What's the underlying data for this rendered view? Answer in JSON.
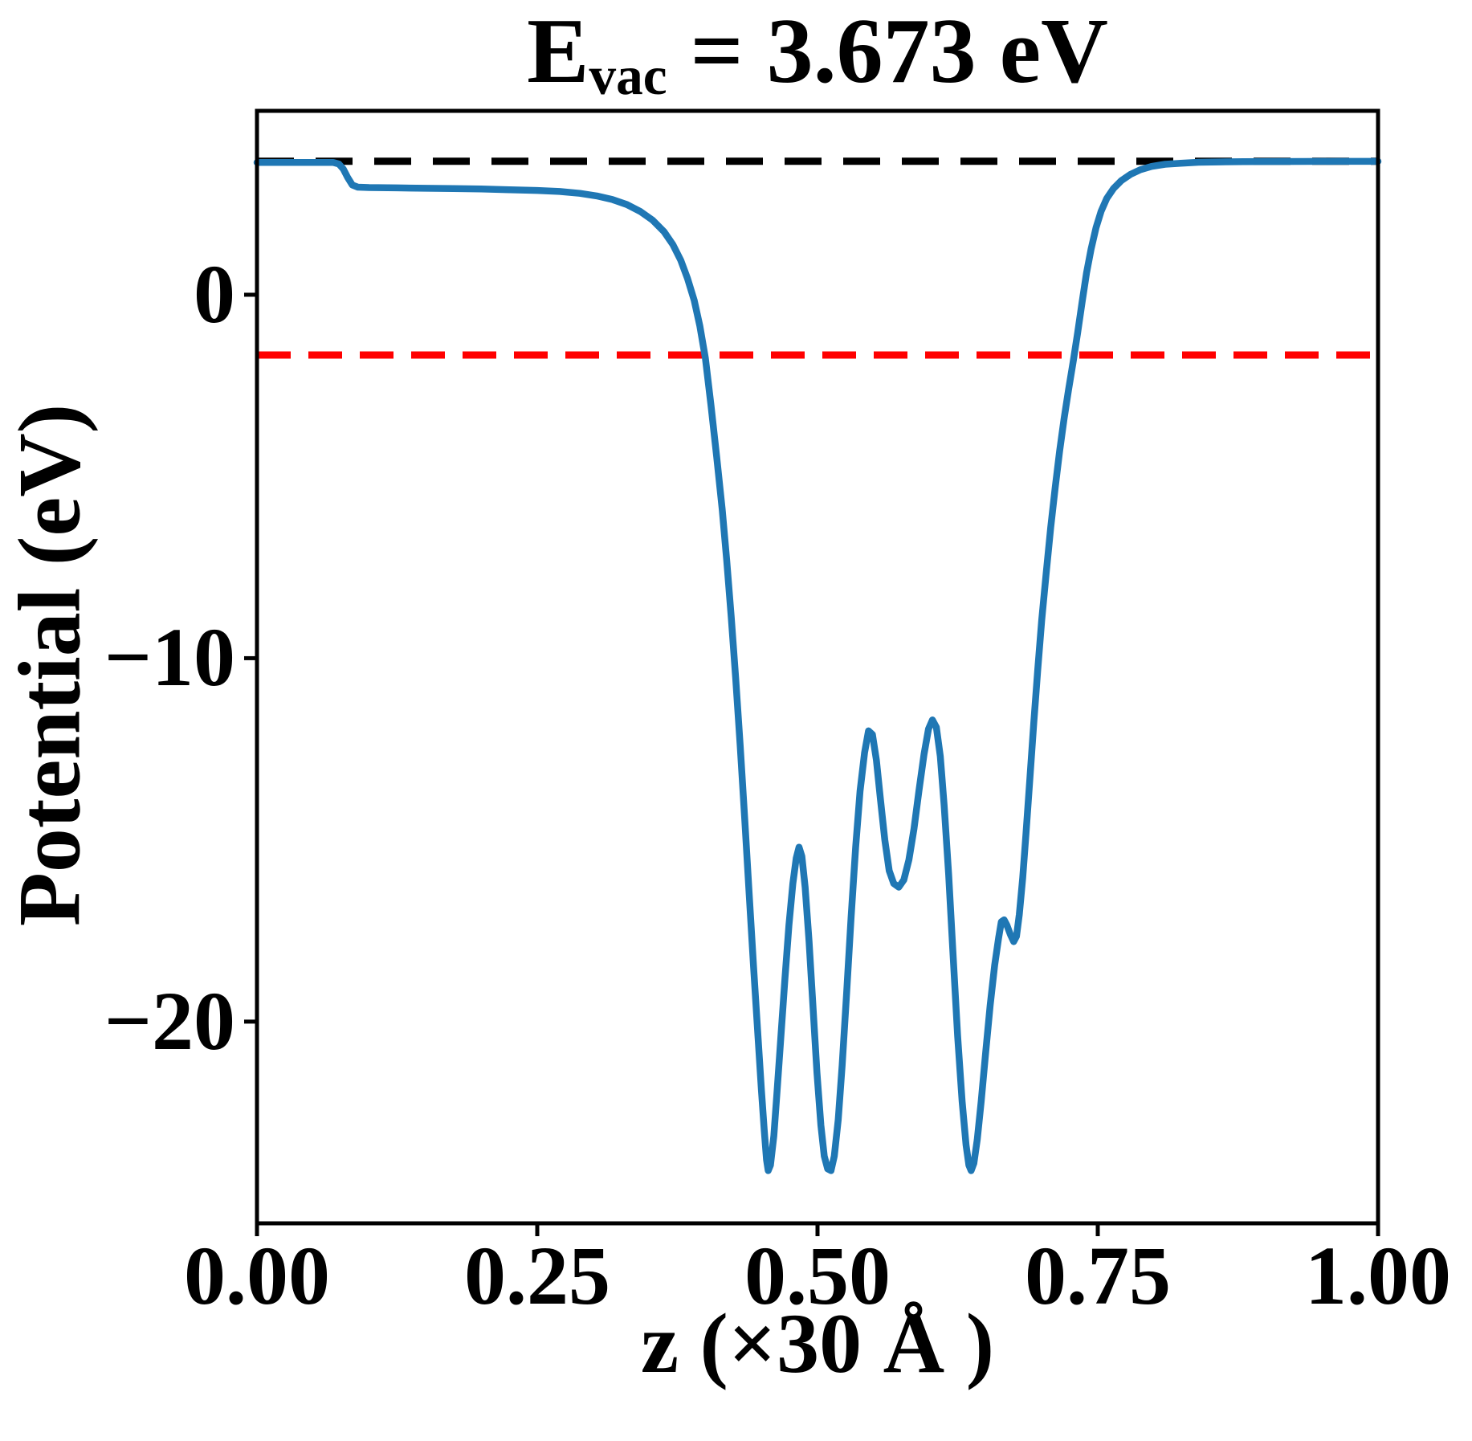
{
  "figure": {
    "background": "#ffffff"
  },
  "title": {
    "prefix": "E",
    "subscript": "vac",
    "suffix": " = 3.673 eV",
    "full_text": "E_vac = 3.673 eV"
  },
  "chart_data": {
    "type": "line",
    "title": "E_vac = 3.673 eV",
    "xlabel": "z (×30 Å )",
    "ylabel": "Potential (eV)",
    "xlim": [
      0,
      1
    ],
    "ylim": [
      -25.55,
      5.06
    ],
    "grid": false,
    "legend": "none",
    "x_ticks": {
      "values": [
        0,
        0.25,
        0.5,
        0.75,
        1.0
      ],
      "labels": [
        "0.00",
        "0.25",
        "0.50",
        "0.75",
        "1.00"
      ]
    },
    "y_ticks": {
      "values": [
        0,
        -10,
        -20
      ],
      "labels": [
        "0",
        "−10",
        "−20"
      ]
    },
    "annotations": {
      "E_vac_eV": 3.673,
      "vacuum_level_eV": 3.673,
      "fermi_level_eV": -1.66
    },
    "series": [
      {
        "name": "vacuum-level",
        "type": "hline",
        "color": "#000000",
        "linestyle": "dashed",
        "dash": "46 27",
        "linewidth": 9,
        "y": 3.673
      },
      {
        "name": "fermi-level",
        "type": "hline",
        "color": "#ff0000",
        "linestyle": "dashed",
        "dash": "42 22",
        "linewidth": 9,
        "y": -1.66
      },
      {
        "name": "planar-averaged-potential",
        "type": "curve",
        "color": "#1f77b4",
        "linestyle": "solid",
        "linewidth": 8.5,
        "points": [
          [
            0.0,
            3.64
          ],
          [
            0.025,
            3.64
          ],
          [
            0.05,
            3.64
          ],
          [
            0.068,
            3.64
          ],
          [
            0.073,
            3.6
          ],
          [
            0.077,
            3.46
          ],
          [
            0.081,
            3.22
          ],
          [
            0.085,
            3.02
          ],
          [
            0.09,
            2.96
          ],
          [
            0.1,
            2.95
          ],
          [
            0.125,
            2.94
          ],
          [
            0.15,
            2.93
          ],
          [
            0.175,
            2.92
          ],
          [
            0.2,
            2.91
          ],
          [
            0.225,
            2.89
          ],
          [
            0.25,
            2.87
          ],
          [
            0.27,
            2.84
          ],
          [
            0.288,
            2.79
          ],
          [
            0.303,
            2.72
          ],
          [
            0.317,
            2.62
          ],
          [
            0.33,
            2.48
          ],
          [
            0.342,
            2.29
          ],
          [
            0.353,
            2.05
          ],
          [
            0.363,
            1.74
          ],
          [
            0.371,
            1.38
          ],
          [
            0.378,
            0.95
          ],
          [
            0.384,
            0.45
          ],
          [
            0.39,
            -0.15
          ],
          [
            0.395,
            -0.85
          ],
          [
            0.4,
            -1.75
          ],
          [
            0.405,
            -3.05
          ],
          [
            0.41,
            -4.45
          ],
          [
            0.415,
            -5.9
          ],
          [
            0.419,
            -7.3
          ],
          [
            0.423,
            -8.85
          ],
          [
            0.427,
            -10.55
          ],
          [
            0.431,
            -12.4
          ],
          [
            0.435,
            -14.4
          ],
          [
            0.439,
            -16.45
          ],
          [
            0.443,
            -18.5
          ],
          [
            0.447,
            -20.45
          ],
          [
            0.45,
            -21.9
          ],
          [
            0.4525,
            -23.0
          ],
          [
            0.4545,
            -23.8
          ],
          [
            0.456,
            -24.1
          ],
          [
            0.458,
            -23.95
          ],
          [
            0.461,
            -23.15
          ],
          [
            0.464,
            -21.9
          ],
          [
            0.4675,
            -20.35
          ],
          [
            0.471,
            -18.8
          ],
          [
            0.4745,
            -17.35
          ],
          [
            0.478,
            -16.2
          ],
          [
            0.481,
            -15.5
          ],
          [
            0.4835,
            -15.2
          ],
          [
            0.486,
            -15.45
          ],
          [
            0.489,
            -16.3
          ],
          [
            0.4925,
            -17.8
          ],
          [
            0.496,
            -19.6
          ],
          [
            0.4995,
            -21.4
          ],
          [
            0.503,
            -22.85
          ],
          [
            0.506,
            -23.7
          ],
          [
            0.509,
            -24.05
          ],
          [
            0.512,
            -24.1
          ],
          [
            0.515,
            -23.7
          ],
          [
            0.5185,
            -22.7
          ],
          [
            0.522,
            -21.2
          ],
          [
            0.526,
            -19.2
          ],
          [
            0.53,
            -17.1
          ],
          [
            0.534,
            -15.2
          ],
          [
            0.538,
            -13.65
          ],
          [
            0.542,
            -12.6
          ],
          [
            0.5455,
            -12.0
          ],
          [
            0.549,
            -12.1
          ],
          [
            0.5525,
            -12.8
          ],
          [
            0.556,
            -13.85
          ],
          [
            0.56,
            -15.0
          ],
          [
            0.564,
            -15.85
          ],
          [
            0.568,
            -16.2
          ],
          [
            0.5725,
            -16.3
          ],
          [
            0.577,
            -16.1
          ],
          [
            0.5815,
            -15.55
          ],
          [
            0.586,
            -14.7
          ],
          [
            0.5905,
            -13.65
          ],
          [
            0.595,
            -12.65
          ],
          [
            0.599,
            -11.95
          ],
          [
            0.6025,
            -11.7
          ],
          [
            0.606,
            -11.9
          ],
          [
            0.6095,
            -12.7
          ],
          [
            0.613,
            -14.05
          ],
          [
            0.617,
            -15.95
          ],
          [
            0.621,
            -18.2
          ],
          [
            0.625,
            -20.4
          ],
          [
            0.629,
            -22.2
          ],
          [
            0.6325,
            -23.4
          ],
          [
            0.635,
            -23.95
          ],
          [
            0.637,
            -24.1
          ],
          [
            0.6395,
            -23.9
          ],
          [
            0.6425,
            -23.25
          ],
          [
            0.646,
            -22.2
          ],
          [
            0.65,
            -20.85
          ],
          [
            0.654,
            -19.55
          ],
          [
            0.658,
            -18.45
          ],
          [
            0.6615,
            -17.7
          ],
          [
            0.664,
            -17.25
          ],
          [
            0.6665,
            -17.2
          ],
          [
            0.669,
            -17.35
          ],
          [
            0.672,
            -17.6
          ],
          [
            0.675,
            -17.8
          ],
          [
            0.6775,
            -17.65
          ],
          [
            0.68,
            -17.05
          ],
          [
            0.683,
            -16.05
          ],
          [
            0.686,
            -14.8
          ],
          [
            0.6895,
            -13.3
          ],
          [
            0.693,
            -11.75
          ],
          [
            0.6965,
            -10.3
          ],
          [
            0.7,
            -8.95
          ],
          [
            0.704,
            -7.65
          ],
          [
            0.708,
            -6.4
          ],
          [
            0.712,
            -5.3
          ],
          [
            0.716,
            -4.3
          ],
          [
            0.72,
            -3.4
          ],
          [
            0.724,
            -2.6
          ],
          [
            0.728,
            -1.85
          ],
          [
            0.732,
            -1.05
          ],
          [
            0.736,
            -0.2
          ],
          [
            0.74,
            0.6
          ],
          [
            0.744,
            1.25
          ],
          [
            0.7485,
            1.85
          ],
          [
            0.753,
            2.3
          ],
          [
            0.758,
            2.65
          ],
          [
            0.764,
            2.92
          ],
          [
            0.771,
            3.14
          ],
          [
            0.779,
            3.31
          ],
          [
            0.788,
            3.44
          ],
          [
            0.798,
            3.53
          ],
          [
            0.81,
            3.59
          ],
          [
            0.824,
            3.62
          ],
          [
            0.84,
            3.645
          ],
          [
            0.858,
            3.655
          ],
          [
            0.88,
            3.662
          ],
          [
            0.905,
            3.666
          ],
          [
            0.935,
            3.668
          ],
          [
            0.965,
            3.669
          ],
          [
            1.0,
            3.67
          ]
        ]
      }
    ]
  }
}
